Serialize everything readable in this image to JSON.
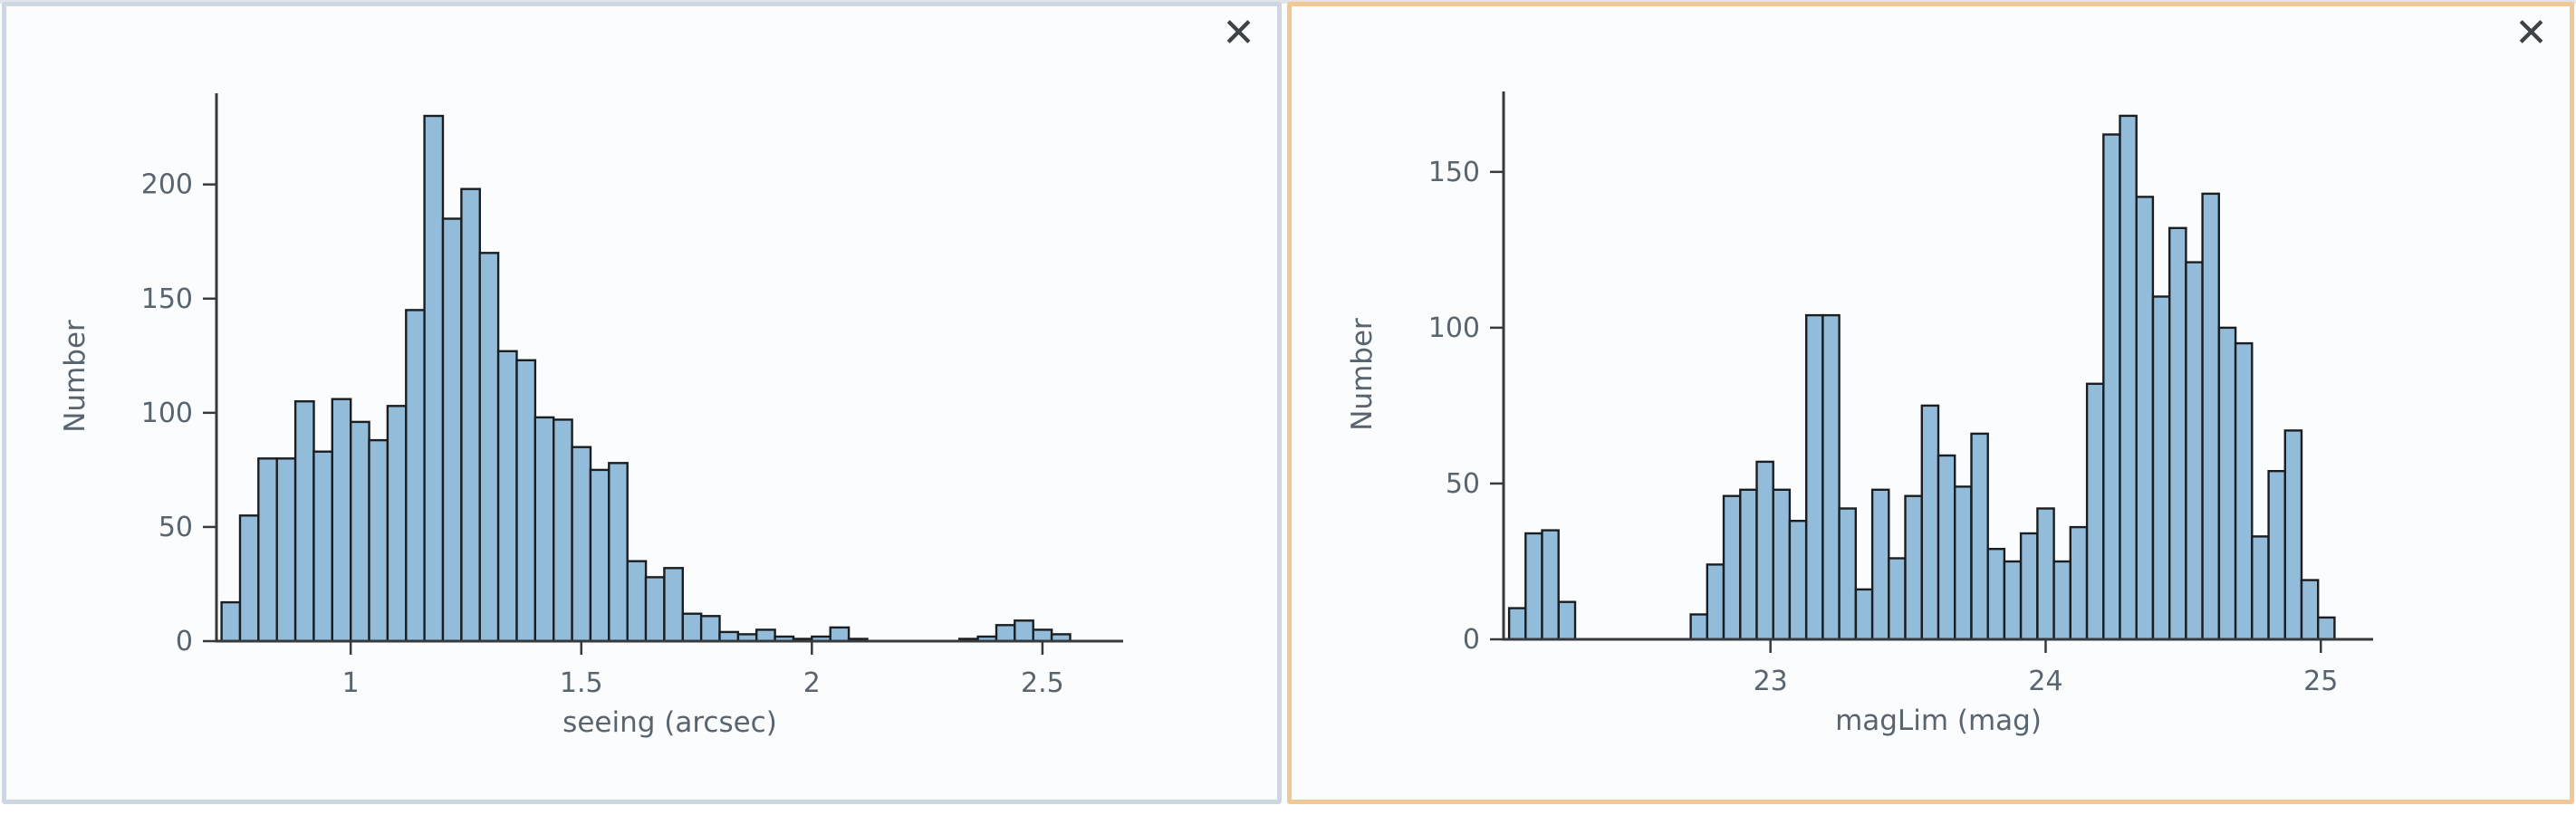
{
  "page": {
    "background": "#ffffff",
    "top_strip_color": "#e0e3e8"
  },
  "panels": [
    {
      "name": "seeing-histogram-panel",
      "border_color": "#ccd7e2",
      "background": "#fbfcfe",
      "close_label": "✕"
    },
    {
      "name": "maglim-histogram-panel",
      "border_color": "#f2c794",
      "background": "#fbfcfe",
      "close_label": "✕"
    }
  ],
  "chart_data": [
    {
      "type": "bar",
      "title": "",
      "xlabel": "seeing (arcsec)",
      "ylabel": "Number",
      "bin_start": 0.72,
      "bin_width": 0.04,
      "values": [
        17,
        55,
        80,
        80,
        105,
        83,
        106,
        96,
        88,
        103,
        145,
        230,
        185,
        198,
        170,
        127,
        123,
        98,
        97,
        85,
        75,
        78,
        35,
        28,
        32,
        12,
        11,
        4,
        3,
        5,
        2,
        1,
        2,
        6,
        1,
        0,
        0,
        0,
        0,
        0,
        1,
        2,
        7,
        9,
        5,
        3
      ],
      "xlim": [
        0.709,
        2.675
      ],
      "ylim": [
        0,
        232
      ],
      "xticks": [
        {
          "v": 1,
          "label": "1"
        },
        {
          "v": 1.5,
          "label": "1.5"
        },
        {
          "v": 2,
          "label": "2"
        },
        {
          "v": 2.5,
          "label": "2.5"
        }
      ],
      "yticks": [
        {
          "v": 0,
          "label": "0"
        },
        {
          "v": 50,
          "label": "50"
        },
        {
          "v": 100,
          "label": "100"
        },
        {
          "v": 150,
          "label": "150"
        },
        {
          "v": 200,
          "label": "200"
        }
      ],
      "grid": false,
      "legend": "none",
      "bar_fill": "#93bcdb",
      "bar_stroke": "#1b1e21",
      "axis_color": "#37393c",
      "label_color": "#59646f"
    },
    {
      "type": "bar",
      "title": "",
      "xlabel": "magLim (mag)",
      "ylabel": "Number",
      "bin_start": 22.05,
      "bin_width": 0.06,
      "values": [
        10,
        34,
        35,
        12,
        0,
        0,
        0,
        0,
        0,
        0,
        0,
        8,
        24,
        46,
        48,
        57,
        48,
        38,
        104,
        104,
        42,
        16,
        48,
        26,
        46,
        75,
        59,
        49,
        66,
        29,
        25,
        34,
        42,
        25,
        36,
        82,
        162,
        168,
        142,
        110,
        132,
        121,
        143,
        100,
        95,
        33,
        54,
        67,
        19,
        7
      ],
      "xlim": [
        22.03,
        25.19
      ],
      "ylim": [
        0,
        170
      ],
      "xticks": [
        {
          "v": 23,
          "label": "23"
        },
        {
          "v": 24,
          "label": "24"
        },
        {
          "v": 25,
          "label": "25"
        }
      ],
      "yticks": [
        {
          "v": 0,
          "label": "0"
        },
        {
          "v": 50,
          "label": "50"
        },
        {
          "v": 100,
          "label": "100"
        },
        {
          "v": 150,
          "label": "150"
        }
      ],
      "grid": false,
      "legend": "none",
      "bar_fill": "#93bcdb",
      "bar_stroke": "#1b1e21",
      "axis_color": "#37393c",
      "label_color": "#59646f"
    }
  ]
}
